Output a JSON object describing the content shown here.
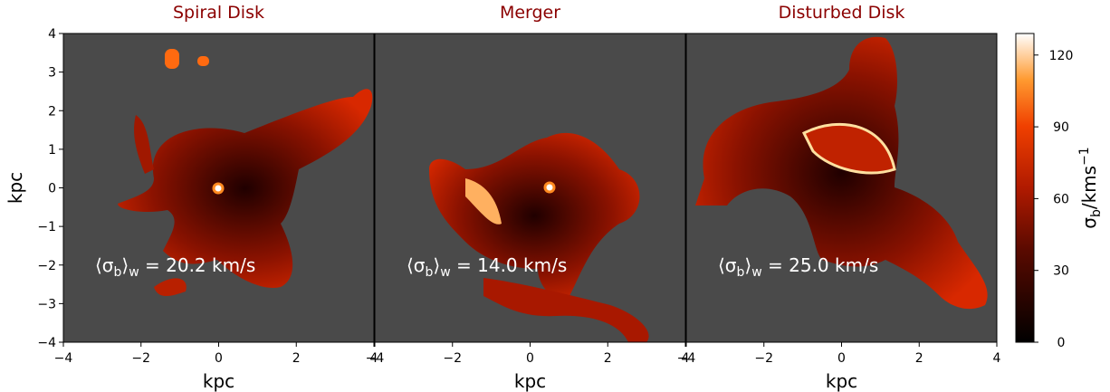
{
  "chart_data": [
    {
      "type": "heatmap",
      "title": "Spiral Disk",
      "xlabel": "kpc",
      "ylabel": "kpc",
      "xlim": [
        -4,
        4
      ],
      "ylim": [
        -4,
        4
      ],
      "xticks": [
        {
          "value": -4,
          "label": "−4"
        },
        {
          "value": -2,
          "label": "−2"
        },
        0,
        2,
        4
      ],
      "yticks": [
        {
          "value": -4,
          "label": "−4"
        },
        {
          "value": -3,
          "label": "−3"
        },
        {
          "value": -2,
          "label": "−2"
        },
        {
          "value": -1,
          "label": "−1"
        },
        0,
        1,
        2,
        3,
        4
      ],
      "annotation": {
        "parts": [
          "⟨σ",
          "b",
          "⟩",
          "w",
          " = "
        ],
        "value": 20.2,
        "value_label": "20.2",
        "unit": " km/s"
      }
    },
    {
      "type": "heatmap",
      "title": "Merger",
      "xlabel": "kpc",
      "xlim": [
        -4,
        4
      ],
      "ylim": [
        -4,
        4
      ],
      "xticks": [
        {
          "value": -4,
          "label": "−4"
        },
        {
          "value": -2,
          "label": "−2"
        },
        0,
        2,
        4
      ],
      "annotation": {
        "parts": [
          "⟨σ",
          "b",
          "⟩",
          "w",
          " = "
        ],
        "value": 14.0,
        "value_label": "14.0",
        "unit": " km/s"
      }
    },
    {
      "type": "heatmap",
      "title": "Disturbed Disk",
      "xlabel": "kpc",
      "xlim": [
        -4,
        4
      ],
      "ylim": [
        -4,
        4
      ],
      "xticks": [
        {
          "value": -4,
          "label": "−4"
        },
        {
          "value": -2,
          "label": "−2"
        },
        0,
        2,
        4
      ],
      "annotation": {
        "parts": [
          "⟨σ",
          "b",
          "⟩",
          "w",
          " = "
        ],
        "value": 25.0,
        "value_label": "25.0",
        "unit": " km/s"
      }
    }
  ],
  "colorbar": {
    "label": [
      "σ",
      "b",
      "/kms",
      "−1"
    ],
    "lim": [
      0,
      129
    ],
    "ticks": [
      0,
      30,
      60,
      90,
      120
    ]
  }
}
